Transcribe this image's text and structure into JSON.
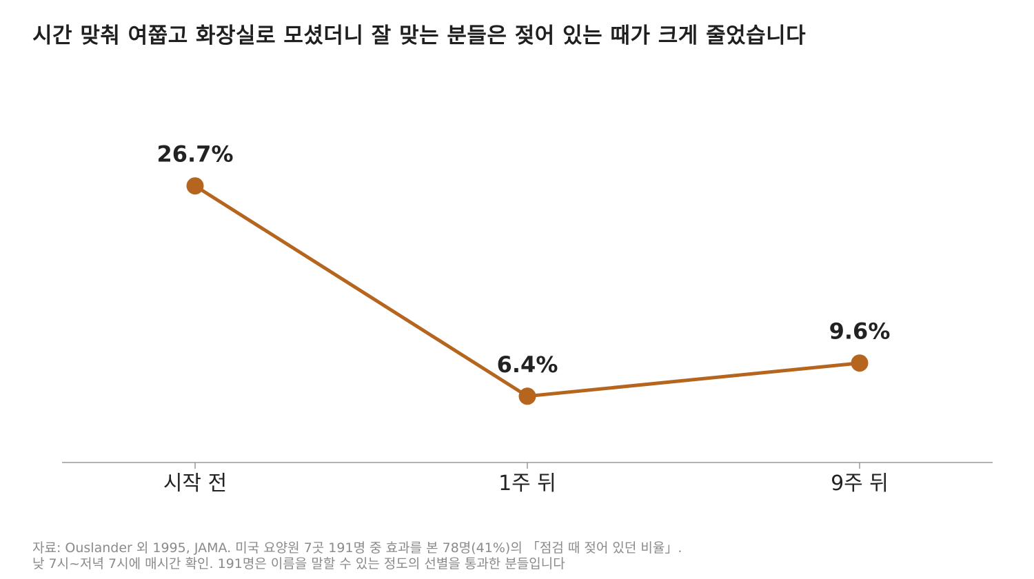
{
  "title": "시간 맞춰 여쭙고 화장실로 모셨더니 잘 맞는 분들은 젖어 있는 때가 크게 줄었습니다",
  "footnote": {
    "line1": "자료: Ouslander 외 1995, JAMA. 미국 요양원 7곳 191명 중 효과를 본 78명(41%)의 「점검 때 젖어 있던 비율」.",
    "line2": "낮 7시~저녁 7시에 매시간 확인. 191명은 이름을 말할 수 있는 정도의 선별을 통과한 분들입니다"
  },
  "colors": {
    "line": "#b5651d",
    "axis": "#999999",
    "label": "#222222"
  },
  "chart_data": {
    "type": "line",
    "title": "시간 맞춰 여쭙고 화장실로 모셨더니 잘 맞는 분들은 젖어 있는 때가 크게 줄었습니다",
    "categories": [
      "시작 전",
      "1주 뒤",
      "9주 뒤"
    ],
    "values": [
      26.7,
      6.4,
      9.6
    ],
    "data_labels": [
      "26.7%",
      "6.4%",
      "9.6%"
    ],
    "unit": "%",
    "xlabel": "",
    "ylabel": "",
    "ylim": [
      0,
      33
    ],
    "grid": false,
    "legend": "none"
  }
}
